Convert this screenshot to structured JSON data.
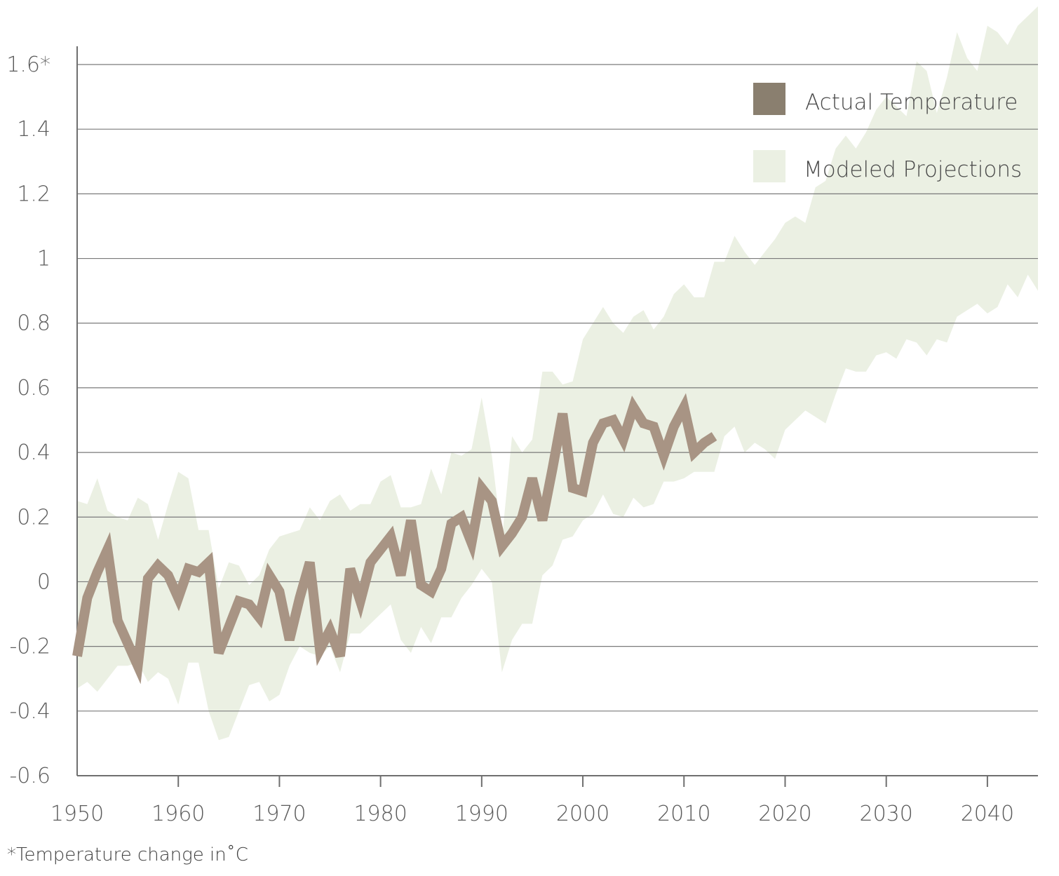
{
  "chart_data": {
    "type": "line",
    "title": "",
    "xlabel": "",
    "ylabel": "",
    "footnote": "*Temperature change in˚C",
    "xlim": [
      1950,
      2045
    ],
    "ylim": [
      -0.6,
      1.6
    ],
    "x_ticks": [
      "1950",
      "1960",
      "1970",
      "1980",
      "1990",
      "2000",
      "2010",
      "2020",
      "2030",
      "2040"
    ],
    "y_ticks": [
      {
        "value": 1.6,
        "label": "1.6*"
      },
      {
        "value": 1.4,
        "label": "1.4"
      },
      {
        "value": 1.2,
        "label": "1.2"
      },
      {
        "value": 1.0,
        "label": "1"
      },
      {
        "value": 0.8,
        "label": "0.8"
      },
      {
        "value": 0.6,
        "label": "0.6"
      },
      {
        "value": 0.4,
        "label": "0.4"
      },
      {
        "value": 0.2,
        "label": "0.2"
      },
      {
        "value": 0.0,
        "label": "0"
      },
      {
        "value": -0.2,
        "label": "-0.2"
      },
      {
        "value": -0.4,
        "label": "-0.4"
      },
      {
        "value": -0.6,
        "label": "-0.6"
      }
    ],
    "grid": true,
    "legend_position": "top-right",
    "series": [
      {
        "name": "Actual Temperature",
        "kind": "line",
        "color": "#a89484",
        "legend_color": "#8a7f6f",
        "x": [
          1950,
          1951,
          1952,
          1953,
          1954,
          1955,
          1956,
          1957,
          1958,
          1959,
          1960,
          1961,
          1962,
          1963,
          1964,
          1965,
          1966,
          1967,
          1968,
          1969,
          1970,
          1971,
          1972,
          1973,
          1974,
          1975,
          1976,
          1977,
          1978,
          1979,
          1980,
          1981,
          1982,
          1983,
          1984,
          1985,
          1986,
          1987,
          1988,
          1989,
          1990,
          1991,
          1992,
          1993,
          1994,
          1995,
          1996,
          1997,
          1998,
          1999,
          2000,
          2001,
          2002,
          2003,
          2004,
          2005,
          2006,
          2007,
          2008,
          2009,
          2010,
          2011,
          2012,
          2013
        ],
        "y": [
          -0.23,
          -0.05,
          0.03,
          0.1,
          -0.12,
          -0.19,
          -0.26,
          0.01,
          0.05,
          0.02,
          -0.05,
          0.04,
          0.03,
          0.06,
          -0.22,
          -0.14,
          -0.06,
          -0.07,
          -0.11,
          0.02,
          -0.03,
          -0.18,
          -0.05,
          0.06,
          -0.21,
          -0.15,
          -0.23,
          0.04,
          -0.06,
          0.06,
          0.1,
          0.14,
          0.02,
          0.19,
          -0.01,
          -0.03,
          0.04,
          0.18,
          0.2,
          0.12,
          0.29,
          0.25,
          0.11,
          0.15,
          0.2,
          0.32,
          0.19,
          0.35,
          0.52,
          0.29,
          0.28,
          0.43,
          0.49,
          0.5,
          0.44,
          0.54,
          0.49,
          0.48,
          0.39,
          0.48,
          0.54,
          0.4,
          0.43,
          0.45
        ]
      },
      {
        "name": "Modeled Projections",
        "kind": "band",
        "color": "#ebf0e3",
        "x": [
          1950,
          1951,
          1952,
          1953,
          1954,
          1955,
          1956,
          1957,
          1958,
          1959,
          1960,
          1961,
          1962,
          1963,
          1964,
          1965,
          1966,
          1967,
          1968,
          1969,
          1970,
          1971,
          1972,
          1973,
          1974,
          1975,
          1976,
          1977,
          1978,
          1979,
          1980,
          1981,
          1982,
          1983,
          1984,
          1985,
          1986,
          1987,
          1988,
          1989,
          1990,
          1991,
          1992,
          1993,
          1994,
          1995,
          1996,
          1997,
          1998,
          1999,
          2000,
          2001,
          2002,
          2003,
          2004,
          2005,
          2006,
          2007,
          2008,
          2009,
          2010,
          2011,
          2012,
          2013,
          2014,
          2015,
          2016,
          2017,
          2018,
          2019,
          2020,
          2021,
          2022,
          2023,
          2024,
          2025,
          2026,
          2027,
          2028,
          2029,
          2030,
          2031,
          2032,
          2033,
          2034,
          2035,
          2036,
          2037,
          2038,
          2039,
          2040,
          2041,
          2042,
          2043,
          2044,
          2045
        ],
        "upper": [
          0.25,
          0.24,
          0.32,
          0.22,
          0.2,
          0.19,
          0.26,
          0.24,
          0.13,
          0.24,
          0.34,
          0.32,
          0.16,
          0.16,
          -0.02,
          0.06,
          0.05,
          -0.01,
          0.02,
          0.1,
          0.14,
          0.15,
          0.16,
          0.23,
          0.19,
          0.25,
          0.27,
          0.22,
          0.24,
          0.24,
          0.31,
          0.33,
          0.23,
          0.23,
          0.24,
          0.35,
          0.27,
          0.4,
          0.39,
          0.41,
          0.57,
          0.39,
          0.13,
          0.45,
          0.4,
          0.44,
          0.65,
          0.65,
          0.61,
          0.62,
          0.75,
          0.8,
          0.85,
          0.8,
          0.77,
          0.82,
          0.84,
          0.78,
          0.82,
          0.89,
          0.92,
          0.88,
          0.88,
          0.99,
          0.99,
          1.07,
          1.02,
          0.98,
          1.02,
          1.06,
          1.11,
          1.13,
          1.11,
          1.22,
          1.24,
          1.34,
          1.38,
          1.34,
          1.39,
          1.46,
          1.5,
          1.47,
          1.44,
          1.61,
          1.58,
          1.45,
          1.56,
          1.7,
          1.62,
          1.58,
          1.72,
          1.7,
          1.66,
          1.72,
          1.75,
          1.78
        ],
        "lower": [
          -0.33,
          -0.31,
          -0.34,
          -0.3,
          -0.26,
          -0.26,
          -0.25,
          -0.31,
          -0.28,
          -0.3,
          -0.38,
          -0.25,
          -0.25,
          -0.4,
          -0.49,
          -0.48,
          -0.4,
          -0.32,
          -0.31,
          -0.37,
          -0.35,
          -0.26,
          -0.2,
          -0.22,
          -0.23,
          -0.2,
          -0.28,
          -0.16,
          -0.16,
          -0.13,
          -0.1,
          -0.07,
          -0.18,
          -0.22,
          -0.14,
          -0.19,
          -0.11,
          -0.11,
          -0.05,
          -0.01,
          0.04,
          0.0,
          -0.28,
          -0.18,
          -0.13,
          -0.13,
          0.02,
          0.05,
          0.13,
          0.14,
          0.19,
          0.21,
          0.27,
          0.21,
          0.2,
          0.26,
          0.23,
          0.24,
          0.31,
          0.31,
          0.32,
          0.34,
          0.34,
          0.34,
          0.45,
          0.48,
          0.4,
          0.43,
          0.41,
          0.38,
          0.47,
          0.5,
          0.53,
          0.51,
          0.49,
          0.58,
          0.66,
          0.65,
          0.65,
          0.7,
          0.71,
          0.69,
          0.75,
          0.74,
          0.7,
          0.75,
          0.74,
          0.82,
          0.84,
          0.86,
          0.83,
          0.85,
          0.92,
          0.88,
          0.95,
          0.9
        ]
      }
    ]
  }
}
